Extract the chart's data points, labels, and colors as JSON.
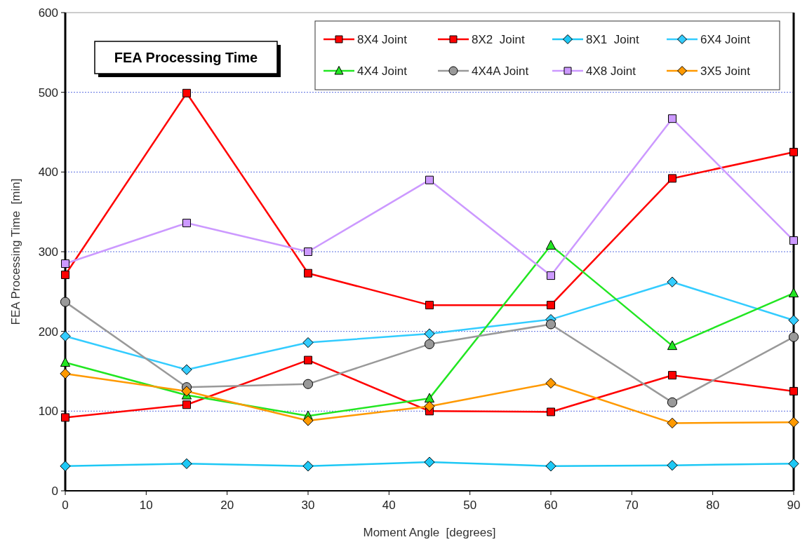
{
  "chart_data": {
    "type": "line",
    "title": "FEA Processing Time",
    "xlabel": "Moment Angle  [degrees]",
    "ylabel": "FEA Processing Time  [min]",
    "x": [
      0,
      15,
      30,
      45,
      60,
      75,
      90
    ],
    "xlim": [
      0,
      90
    ],
    "xticks": [
      0,
      10,
      20,
      30,
      40,
      50,
      60,
      70,
      80,
      90
    ],
    "ylim": [
      0,
      600
    ],
    "yticks": [
      0,
      100,
      200,
      300,
      400,
      500,
      600
    ],
    "grid": "y",
    "legend": "top right",
    "line_style": "solid",
    "series": [
      {
        "name": "8X4 Joint",
        "color": "#ff0000",
        "marker": "square",
        "values": [
          271,
          499,
          273,
          233,
          233,
          392,
          425
        ]
      },
      {
        "name": "8X2  Joint",
        "color": "#ff0000",
        "marker": "square",
        "values": [
          92,
          108,
          164,
          100,
          99,
          145,
          125
        ]
      },
      {
        "name": "8X1  Joint",
        "color": "#1ec8f5",
        "marker": "diamond",
        "values": [
          31,
          34,
          31,
          36,
          31,
          32,
          34
        ]
      },
      {
        "name": "6X4 Joint",
        "color": "#33ccff",
        "marker": "diamond",
        "values": [
          194,
          152,
          186,
          197,
          215,
          262,
          214
        ]
      },
      {
        "name": "4X4 Joint",
        "color": "#22e622",
        "marker": "triangle",
        "values": [
          161,
          120,
          94,
          116,
          308,
          182,
          248
        ]
      },
      {
        "name": "4X4A Joint",
        "color": "#999999",
        "marker": "circle",
        "values": [
          237,
          130,
          134,
          184,
          209,
          111,
          193
        ]
      },
      {
        "name": "4X8 Joint",
        "color": "#cc99ff",
        "marker": "square",
        "values": [
          285,
          336,
          300,
          390,
          270,
          467,
          314
        ]
      },
      {
        "name": "3X5 Joint",
        "color": "#ff9900",
        "marker": "diamond",
        "values": [
          147,
          125,
          88,
          106,
          135,
          85,
          86
        ]
      }
    ]
  }
}
